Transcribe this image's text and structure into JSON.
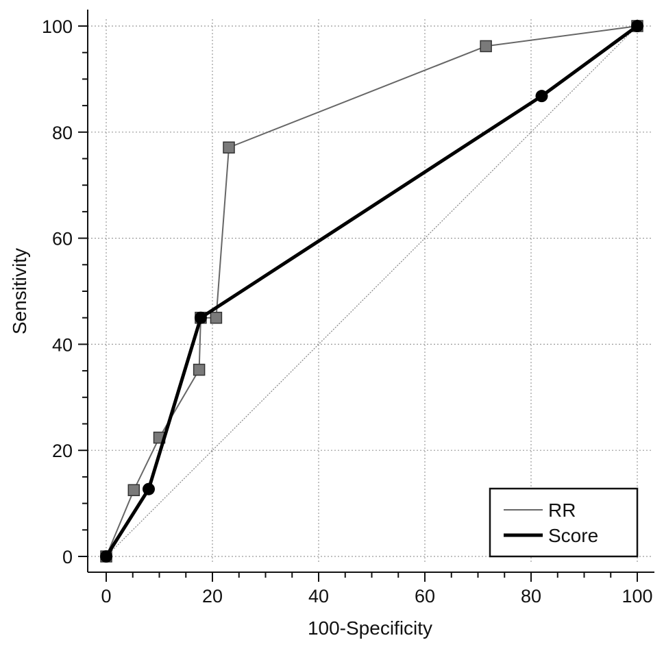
{
  "chart_data": {
    "type": "line",
    "title": "",
    "xlabel": "100-Specificity",
    "ylabel": "Sensitivity",
    "xlim": [
      0,
      100
    ],
    "ylim": [
      0,
      100
    ],
    "xticks": [
      0,
      20,
      40,
      60,
      80,
      100
    ],
    "yticks": [
      0,
      20,
      40,
      60,
      80,
      100
    ],
    "grid": true,
    "legend_position": "bottom-right",
    "reference_line": {
      "x": [
        0,
        100
      ],
      "y": [
        0,
        100
      ]
    },
    "series": [
      {
        "name": "RR",
        "marker": "square",
        "color": "#666666",
        "x": [
          0,
          5.2,
          10,
          17.5,
          17.8,
          20.7,
          23.1,
          71.5,
          100
        ],
        "y": [
          0,
          12.5,
          22.4,
          35.2,
          45,
          45,
          77.1,
          96.2,
          100
        ]
      },
      {
        "name": "Score",
        "marker": "circle",
        "color": "#000000",
        "x": [
          0,
          8,
          17.8,
          82,
          100
        ],
        "y": [
          0,
          12.7,
          45,
          86.8,
          100
        ]
      }
    ]
  }
}
